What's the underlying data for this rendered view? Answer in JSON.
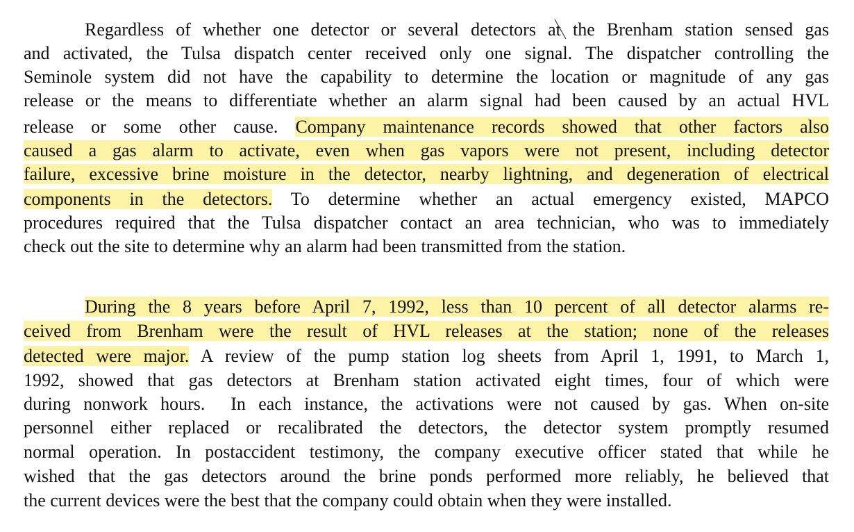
{
  "document": {
    "paragraphs": [
      {
        "lines": [
          {
            "segments": [
              {
                "text": "Regardless of whether one detector or several detectors at the Brenham station sensed gas",
                "highlight": false
              }
            ]
          },
          {
            "segments": [
              {
                "text": "and activated, the Tulsa dispatch center received only one signal. The dispatcher controlling the",
                "highlight": false
              }
            ]
          },
          {
            "segments": [
              {
                "text": "Seminole system did not have the capability to determine the location or magnitude of any gas",
                "highlight": false
              }
            ]
          },
          {
            "segments": [
              {
                "text": "release or the means to differentiate whether an alarm signal had been caused by an actual HVL",
                "highlight": false
              }
            ]
          },
          {
            "segments": [
              {
                "text": "release or some other cause. ",
                "highlight": false
              },
              {
                "text": "Company maintenance records showed that other factors also",
                "highlight": true
              }
            ]
          },
          {
            "segments": [
              {
                "text": "caused a gas alarm to activate, even when gas vapors were not present, including detector",
                "highlight": true
              }
            ]
          },
          {
            "segments": [
              {
                "text": "failure, excessive brine moisture in the detector, nearby lightning, and degeneration of electrical",
                "highlight": true
              }
            ]
          },
          {
            "segments": [
              {
                "text": "components in the detectors.",
                "highlight": true
              },
              {
                "text": " To determine whether an actual emergency existed, MAPCO",
                "highlight": false
              }
            ]
          },
          {
            "segments": [
              {
                "text": "procedures required that the Tulsa dispatcher contact an area technician, who was to immediately",
                "highlight": false
              }
            ]
          },
          {
            "segments": [
              {
                "text": "check out the site to determine why an alarm had been transmitted from the station.",
                "highlight": false
              }
            ]
          }
        ]
      },
      {
        "lines": [
          {
            "segments": [
              {
                "text": "During the 8 years before April 7, 1992, less than 10 percent of all detector alarms re-",
                "highlight": true
              }
            ]
          },
          {
            "segments": [
              {
                "text": "ceived from Brenham were the result of HVL releases at the station; none of the releases",
                "highlight": true
              }
            ]
          },
          {
            "segments": [
              {
                "text": "detected were major.",
                "highlight": true
              },
              {
                "text": " A review of the pump station log sheets from April 1, 1991, to March 1,",
                "highlight": false
              }
            ]
          },
          {
            "segments": [
              {
                "text": "1992, showed that gas detectors at Brenham station activated eight times, four of which were",
                "highlight": false
              }
            ]
          },
          {
            "segments": [
              {
                "text": "during nonwork hours.  In each instance, the activations were not caused by gas. When on-site",
                "highlight": false
              }
            ]
          },
          {
            "segments": [
              {
                "text": "personnel either replaced or recalibrated the detectors, the detector system promptly resumed",
                "highlight": false
              }
            ]
          },
          {
            "segments": [
              {
                "text": "normal operation. In postaccident testimony, the company executive officer stated that while he",
                "highlight": false
              }
            ]
          },
          {
            "segments": [
              {
                "text": "wished that the gas detectors around the brine ponds performed more reliably, he believed that",
                "highlight": false
              }
            ]
          },
          {
            "segments": [
              {
                "text": "the current devices were the best that the company could obtain when they were installed.",
                "highlight": false
              }
            ]
          }
        ]
      }
    ]
  }
}
